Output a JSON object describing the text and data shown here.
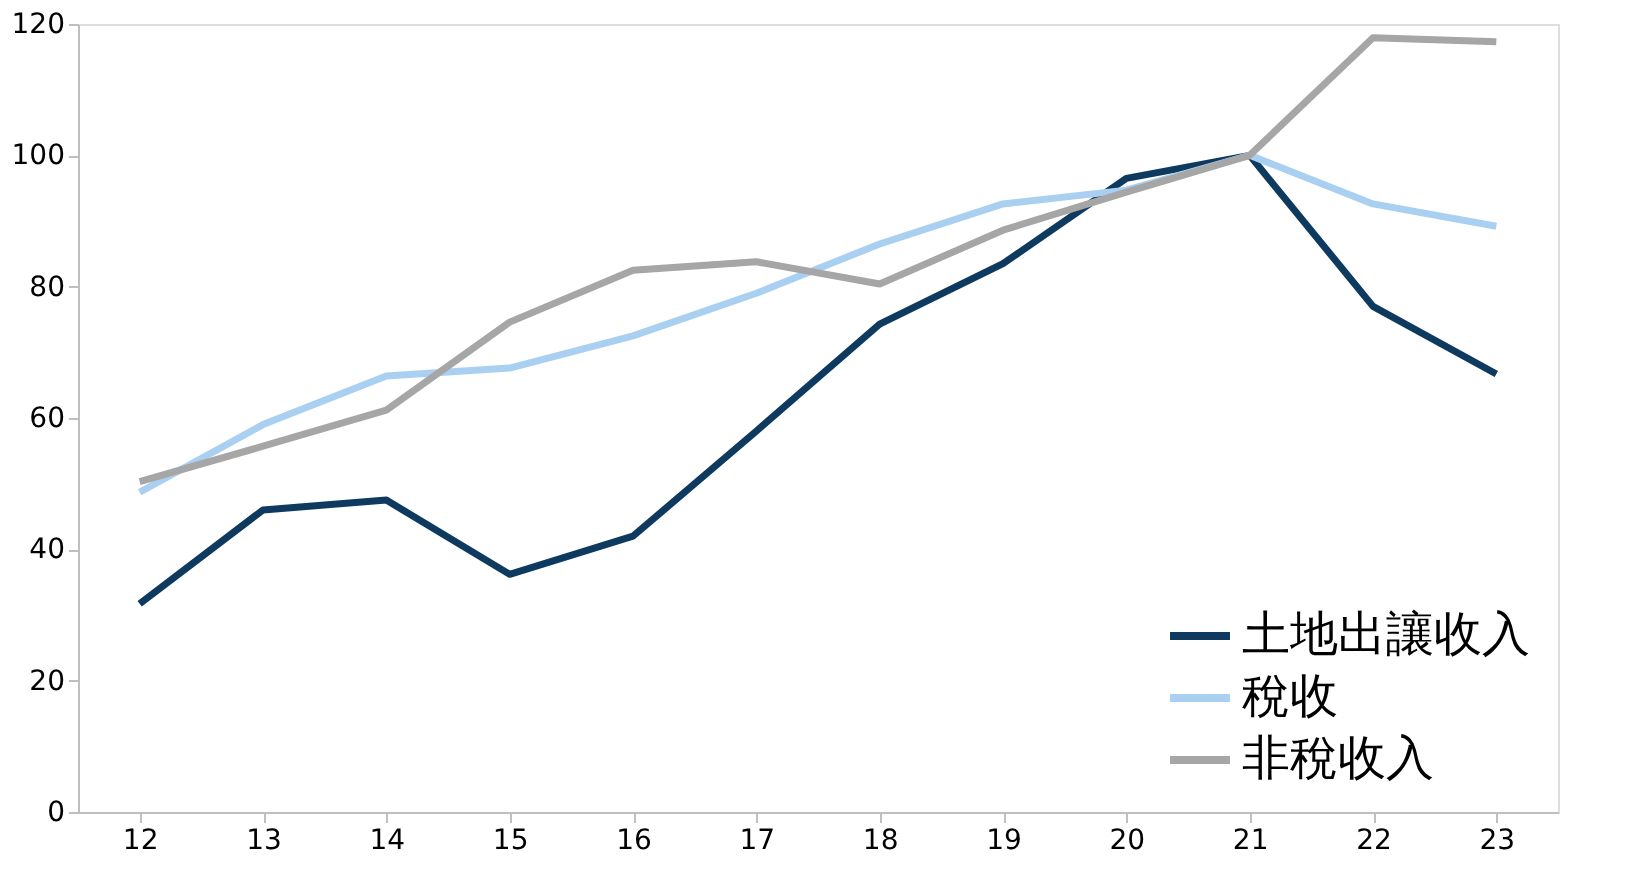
{
  "chart_data": {
    "type": "line",
    "categories": [
      "12",
      "13",
      "14",
      "15",
      "16",
      "17",
      "18",
      "19",
      "20",
      "21",
      "22",
      "23"
    ],
    "series": [
      {
        "name": "土地出讓收入",
        "color": "#0e3a5f",
        "values": [
          31.7,
          46,
          47.5,
          36.2,
          42,
          58,
          74.3,
          83.5,
          96.5,
          100,
          77,
          66.7
        ]
      },
      {
        "name": "稅收",
        "color": "#a9d0f0",
        "values": [
          48.7,
          59,
          66.4,
          67.6,
          72.5,
          79,
          86.5,
          92.6,
          94.7,
          100,
          92.6,
          89.2
        ]
      },
      {
        "name": "非稅收入",
        "color": "#a6a6a6",
        "values": [
          50.3,
          55.7,
          61.2,
          74.6,
          82.5,
          83.8,
          80.4,
          88.6,
          94.4,
          100,
          117.9,
          117.3
        ]
      }
    ],
    "ylim": [
      0,
      120
    ],
    "yticks": [
      0,
      20,
      40,
      60,
      80,
      100,
      120
    ],
    "grid": false,
    "legend": "bottom right",
    "marker": "none",
    "line_style": "solid"
  }
}
